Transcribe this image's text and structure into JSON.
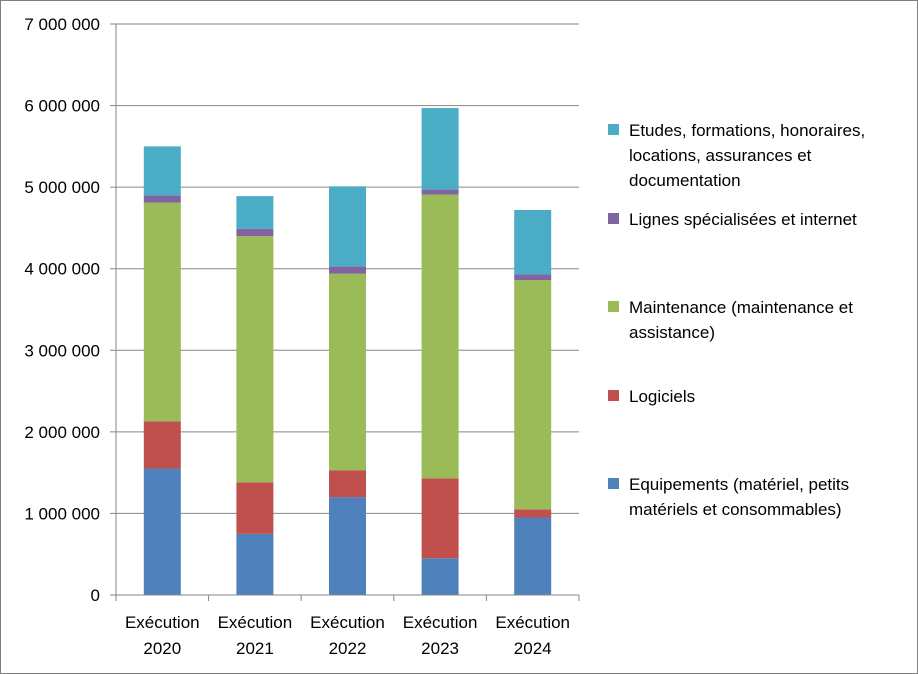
{
  "chart_data": {
    "type": "bar",
    "stacked": true,
    "categories": [
      [
        "Exécution",
        "2020"
      ],
      [
        "Exécution",
        "2021"
      ],
      [
        "Exécution",
        "2022"
      ],
      [
        "Exécution",
        "2023"
      ],
      [
        "Exécution",
        "2024"
      ]
    ],
    "ylim": [
      0,
      7000000
    ],
    "ytick_values": [
      0,
      1000000,
      2000000,
      3000000,
      4000000,
      5000000,
      6000000,
      7000000
    ],
    "ytick_labels": [
      "0",
      "1 000 000",
      "2 000 000",
      "3 000 000",
      "4 000 000",
      "5 000 000",
      "6 000 000",
      "7 000 000"
    ],
    "grid": true,
    "legend_position": "right",
    "series": [
      {
        "name": "Equipements (matériel, petits matériels et consommables)",
        "legend_lines": [
          "Equipements (matériel, petits",
          "matériels et consommables)"
        ],
        "color": "#4f81bd",
        "values": [
          1550000,
          750000,
          1200000,
          450000,
          950000
        ]
      },
      {
        "name": "Logiciels",
        "legend_lines": [
          "Logiciels"
        ],
        "color": "#c0504d",
        "values": [
          580000,
          630000,
          330000,
          980000,
          100000
        ]
      },
      {
        "name": "Maintenance (maintenance et assistance)",
        "legend_lines": [
          "Maintenance (maintenance et",
          "assistance)"
        ],
        "color": "#9bbb59",
        "values": [
          2680000,
          3020000,
          2410000,
          3480000,
          2810000
        ]
      },
      {
        "name": "Lignes spécialisées et internet",
        "legend_lines": [
          "Lignes spécialisées et internet"
        ],
        "color": "#8064a2",
        "values": [
          90000,
          90000,
          90000,
          60000,
          70000
        ]
      },
      {
        "name": "Etudes, formations, honoraires, locations, assurances et documentation",
        "legend_lines": [
          "Etudes, formations, honoraires,",
          "locations, assurances et",
          "documentation"
        ],
        "color": "#4bacc6",
        "values": [
          600000,
          400000,
          980000,
          1000000,
          790000
        ]
      }
    ]
  }
}
